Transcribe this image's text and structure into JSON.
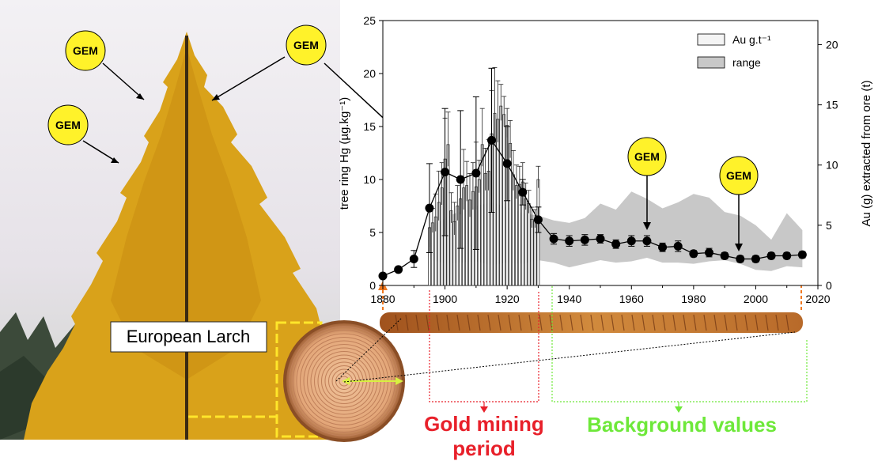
{
  "figure": {
    "gem_label": "GEM",
    "species_label": "European Larch",
    "period_label_line1": "Gold mining",
    "period_label_line2": "period",
    "background_label": "Background values"
  },
  "colors": {
    "larch": "#d9a21a",
    "gem_fill": "#fff22a",
    "gold_period": "#e8202a",
    "background_period": "#6ee83a",
    "range_fill": "#c8c8c8",
    "bar_fill": "#f4f4f4"
  },
  "chart_data": {
    "type": "bar",
    "xlabel": "",
    "ylabel": "tree ring Hg (µg.kg⁻¹)",
    "y2label": "Au (g) extracted from ore (t)",
    "xlim": [
      1880,
      2020
    ],
    "ylim": [
      0,
      25
    ],
    "y2lim": [
      0,
      22
    ],
    "x_ticks": [
      "1880",
      "1900",
      "1920",
      "1940",
      "1960",
      "1980",
      "2000",
      "2020"
    ],
    "y_ticks": [
      "0",
      "5",
      "10",
      "15",
      "20",
      "25"
    ],
    "y2_ticks": [
      "0",
      "5",
      "10",
      "15",
      "20"
    ],
    "legend_position": "top-right",
    "grid": false,
    "legend": [
      {
        "name": "Au g.t⁻¹",
        "kind": "bar"
      },
      {
        "name": "range",
        "kind": "area"
      }
    ],
    "au_bars": {
      "name": "Au g.t⁻¹",
      "x": [
        1895,
        1896,
        1897,
        1898,
        1899,
        1900,
        1901,
        1902,
        1903,
        1904,
        1905,
        1906,
        1907,
        1908,
        1909,
        1910,
        1911,
        1912,
        1913,
        1914,
        1915,
        1916,
        1917,
        1918,
        1919,
        1920,
        1921,
        1922,
        1923,
        1924,
        1925,
        1926,
        1927,
        1928,
        1929,
        1930
      ],
      "values": [
        4.8,
        5.2,
        5.7,
        6.9,
        8.1,
        10.5,
        11.7,
        6.2,
        5.3,
        6.6,
        7.2,
        8.1,
        8.3,
        7.1,
        7.8,
        8.2,
        8.8,
        11.7,
        9.3,
        9.5,
        12.6,
        14.3,
        13.8,
        14.9,
        14.2,
        13.3,
        11.8,
        9.2,
        8.3,
        8.4,
        8.6,
        7.2,
        6.8,
        5.5,
        5.4,
        8.8
      ],
      "upper_error": [
        1.8,
        1.2,
        1.9,
        2.6,
        2.1,
        3.4,
        2.7,
        1.5,
        1.6,
        1.7,
        1.9,
        3.2,
        2.0,
        2.2,
        2.4,
        3.7,
        1.6,
        3.0,
        2.1,
        2.6,
        3.6,
        3.8,
        3.2,
        1.8,
        1.5,
        1.4,
        1.9,
        2.0,
        1.7,
        1.5,
        1.6,
        1.3,
        1.1,
        1.0,
        0.9,
        1.1
      ],
      "lower_error": [
        1.6,
        0.8,
        1.2,
        1.5,
        1.4,
        2.1,
        1.8,
        1.0,
        1.1,
        1.2,
        1.3,
        1.8,
        1.3,
        1.4,
        1.5,
        1.9,
        1.1,
        1.8,
        1.4,
        1.6,
        2.0,
        2.2,
        1.9,
        1.2,
        1.0,
        1.0,
        1.2,
        1.3,
        1.1,
        1.0,
        1.1,
        0.9,
        0.8,
        0.7,
        0.6,
        0.7
      ]
    },
    "range_band": {
      "name": "range",
      "x": [
        1895,
        1900,
        1905,
        1910,
        1915,
        1920,
        1925,
        1930,
        1935,
        1940,
        1945,
        1950,
        1955,
        1960,
        1965,
        1970,
        1975,
        1980,
        1985,
        1990,
        1995,
        2000,
        2005,
        2010,
        2015
      ],
      "upper": [
        4.8,
        5.6,
        6.2,
        6.6,
        6.9,
        6.5,
        6.0,
        5.8,
        5.4,
        5.2,
        5.6,
        6.8,
        6.3,
        7.8,
        7.2,
        6.4,
        6.9,
        7.6,
        7.3,
        6.1,
        5.8,
        5.0,
        3.8,
        6.0,
        4.6
      ],
      "lower": [
        2.2,
        1.8,
        1.9,
        2.0,
        1.7,
        1.9,
        1.8,
        2.1,
        1.9,
        1.5,
        1.8,
        2.1,
        1.9,
        2.0,
        2.3,
        1.9,
        1.9,
        1.8,
        2.0,
        2.1,
        1.8,
        1.3,
        1.2,
        1.6,
        1.5
      ]
    },
    "series": [
      {
        "name": "",
        "x": [
          1880,
          1885,
          1890,
          1895,
          1900,
          1905,
          1910,
          1915,
          1920,
          1925,
          1930,
          1935,
          1940,
          1945,
          1950,
          1955,
          1960,
          1965,
          1970,
          1975,
          1980,
          1985,
          1990,
          1995,
          2000,
          2005,
          2010,
          2015
        ],
        "values": [
          0.9,
          1.5,
          2.5,
          7.3,
          10.7,
          10.0,
          10.6,
          13.7,
          11.5,
          8.8,
          6.2,
          4.4,
          4.2,
          4.3,
          4.4,
          3.9,
          4.2,
          4.2,
          3.6,
          3.7,
          3.0,
          3.1,
          2.8,
          2.5,
          2.5,
          2.8,
          2.8,
          2.9
        ],
        "error": [
          0.2,
          0.2,
          0.8,
          4.2,
          6.0,
          6.5,
          7.2,
          6.8,
          3.5,
          1.2,
          1.2,
          0.5,
          0.5,
          0.5,
          0.4,
          0.4,
          0.5,
          0.5,
          0.4,
          0.5,
          0.3,
          0.4,
          0.3,
          0.3,
          0.3,
          0.3,
          0.3,
          0.3
        ]
      }
    ]
  }
}
